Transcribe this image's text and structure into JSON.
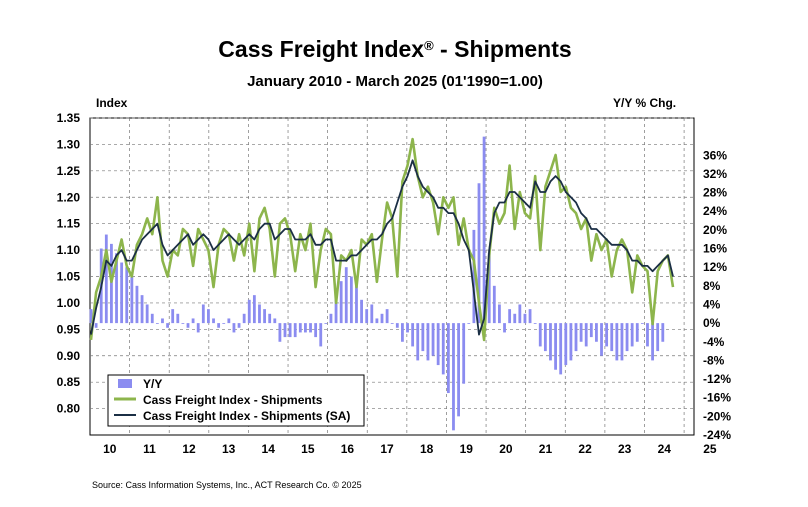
{
  "title": "Cass Freight Index",
  "title_mark": "®",
  "title_suffix": " - Shipments",
  "subtitle": "January 2010 - March 2025 (01'1990=1.00)",
  "left_axis_name": "Index",
  "right_axis_name": "Y/Y % Chg.",
  "source": "Source: Cass Information Systems, Inc., ACT Research Co. © 2025",
  "colors": {
    "yy": "#8b8cf0",
    "nsa": "#8db54c",
    "sa": "#1b2f45",
    "grid": "#777777"
  },
  "chart_data": {
    "type": "bar+line",
    "title": "Cass Freight Index® - Shipments",
    "subtitle": "January 2010 - March 2025 (01'1990=1.00)",
    "left_axis": {
      "label": "Index",
      "range": [
        0.75,
        1.35
      ],
      "ticks": [
        "0.80",
        "0.85",
        "0.90",
        "0.95",
        "1.00",
        "1.05",
        "1.10",
        "1.15",
        "1.20",
        "1.25",
        "1.30",
        "1.35"
      ]
    },
    "right_axis": {
      "label": "Y/Y % Chg.",
      "range": [
        -24,
        44
      ],
      "ticks": [
        "36%",
        "32%",
        "28%",
        "24%",
        "20%",
        "16%",
        "12%",
        "8%",
        "4%",
        "0%",
        "-4%",
        "-8%",
        "-12%",
        "-16%",
        "-20%",
        "-24%"
      ]
    },
    "x_axis": {
      "labels": [
        "10",
        "11",
        "12",
        "13",
        "14",
        "15",
        "16",
        "17",
        "18",
        "19",
        "20",
        "21",
        "22",
        "23",
        "24",
        "25"
      ],
      "start": "2010-01",
      "end": "2025-03",
      "months_per_point": 3
    },
    "legend": [
      "Y/Y",
      "Cass Freight Index - Shipments",
      "Cass Freight Index - Shipments (SA)"
    ],
    "legend_position": "bottom-left",
    "series": [
      {
        "name": "Y/Y",
        "type": "bar",
        "axis": "right",
        "values": [
          3,
          -1,
          16,
          19,
          17,
          15,
          13,
          12,
          10,
          8,
          6,
          4,
          2,
          0,
          1,
          -1,
          3,
          2,
          0,
          -1,
          1,
          -2,
          4,
          3,
          1,
          -1,
          0,
          1,
          -2,
          -1,
          2,
          5,
          6,
          4,
          3,
          2,
          1,
          -4,
          -3,
          -3,
          -3,
          -2,
          -2,
          -2,
          -3,
          -5,
          0,
          2,
          7,
          9,
          12,
          10,
          8,
          5,
          3,
          4,
          1,
          2,
          3,
          0,
          -1,
          -4,
          -2,
          -5,
          -8,
          -6,
          -8,
          -7,
          -9,
          -11,
          -15,
          -23,
          -20,
          -13,
          0,
          20,
          30,
          40,
          15,
          8,
          4,
          -2,
          3,
          2,
          4,
          2,
          3,
          0,
          -5,
          -6,
          -8,
          -10,
          -11,
          -9,
          -8,
          -6,
          -4,
          -5,
          -3,
          -4,
          -7,
          -5,
          -6,
          -8,
          -8,
          -6,
          -5,
          -4,
          0,
          -5,
          -8,
          -6,
          -4
        ]
      },
      {
        "name": "Cass Freight Index - Shipments",
        "type": "line",
        "axis": "left",
        "values": [
          0.93,
          1.02,
          1.05,
          1.1,
          1.04,
          1.08,
          1.12,
          1.07,
          1.05,
          1.11,
          1.13,
          1.16,
          1.13,
          1.2,
          1.08,
          1.05,
          1.1,
          1.09,
          1.14,
          1.13,
          1.07,
          1.14,
          1.12,
          1.1,
          1.03,
          1.11,
          1.14,
          1.13,
          1.08,
          1.13,
          1.09,
          1.15,
          1.06,
          1.16,
          1.18,
          1.14,
          1.05,
          1.15,
          1.16,
          1.13,
          1.06,
          1.13,
          1.1,
          1.15,
          1.03,
          1.1,
          1.14,
          1.13,
          1.0,
          1.09,
          1.08,
          1.1,
          1.03,
          1.12,
          1.11,
          1.13,
          1.04,
          1.12,
          1.19,
          1.16,
          1.05,
          1.23,
          1.26,
          1.31,
          1.24,
          1.2,
          1.22,
          1.19,
          1.13,
          1.2,
          1.18,
          1.2,
          1.11,
          1.16,
          1.1,
          1.08,
          1.0,
          0.93,
          1.09,
          1.18,
          1.15,
          1.17,
          1.26,
          1.14,
          1.21,
          1.17,
          1.16,
          1.24,
          1.1,
          1.22,
          1.25,
          1.28,
          1.21,
          1.22,
          1.18,
          1.17,
          1.14,
          1.16,
          1.08,
          1.13,
          1.1,
          1.12,
          1.05,
          1.1,
          1.12,
          1.1,
          1.02,
          1.09,
          1.07,
          1.06,
          0.96,
          1.06,
          1.08,
          1.09,
          1.03
        ]
      },
      {
        "name": "Cass Freight Index - Shipments (SA)",
        "type": "line",
        "axis": "left",
        "values": [
          0.94,
          0.99,
          1.03,
          1.08,
          1.07,
          1.09,
          1.1,
          1.08,
          1.08,
          1.1,
          1.12,
          1.13,
          1.14,
          1.15,
          1.11,
          1.09,
          1.1,
          1.11,
          1.12,
          1.13,
          1.11,
          1.12,
          1.13,
          1.12,
          1.1,
          1.11,
          1.12,
          1.13,
          1.12,
          1.11,
          1.12,
          1.13,
          1.12,
          1.14,
          1.15,
          1.15,
          1.12,
          1.13,
          1.14,
          1.14,
          1.12,
          1.12,
          1.12,
          1.13,
          1.11,
          1.11,
          1.12,
          1.12,
          1.08,
          1.08,
          1.08,
          1.09,
          1.09,
          1.1,
          1.11,
          1.12,
          1.12,
          1.13,
          1.15,
          1.16,
          1.19,
          1.22,
          1.24,
          1.27,
          1.24,
          1.22,
          1.21,
          1.2,
          1.18,
          1.18,
          1.17,
          1.17,
          1.15,
          1.12,
          1.1,
          1.02,
          0.94,
          0.97,
          1.1,
          1.17,
          1.19,
          1.19,
          1.21,
          1.21,
          1.2,
          1.19,
          1.18,
          1.23,
          1.21,
          1.21,
          1.23,
          1.24,
          1.23,
          1.21,
          1.2,
          1.19,
          1.17,
          1.16,
          1.14,
          1.14,
          1.13,
          1.12,
          1.11,
          1.11,
          1.11,
          1.1,
          1.08,
          1.08,
          1.07,
          1.07,
          1.06,
          1.07,
          1.08,
          1.09,
          1.05
        ]
      }
    ]
  }
}
